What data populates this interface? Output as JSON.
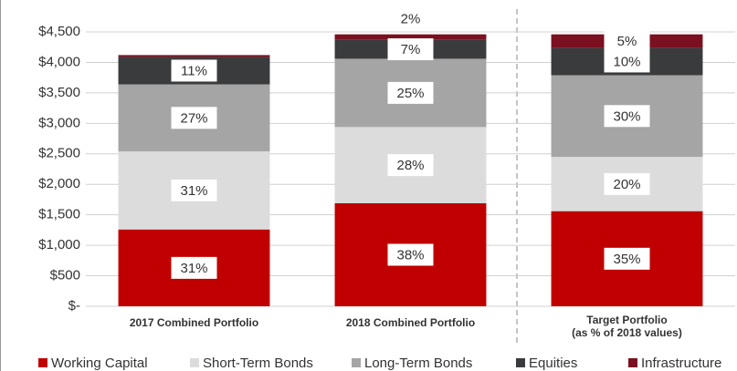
{
  "chart_data": {
    "type": "stacked_bar",
    "categories": [
      "2017 Combined Portfolio",
      "2018 Combined Portfolio",
      "Target Portfolio"
    ],
    "category_notes": [
      null,
      null,
      "(as % of 2018 values)"
    ],
    "series": [
      {
        "name": "Working Capital",
        "color": "#c00000",
        "values": [
          1260,
          1690,
          1560
        ],
        "percent_labels": [
          "31%",
          "38%",
          "35%"
        ]
      },
      {
        "name": "Short-Term Bonds",
        "color": "#dcdcdc",
        "values": [
          1280,
          1250,
          890
        ],
        "percent_labels": [
          "31%",
          "28%",
          "20%"
        ]
      },
      {
        "name": "Long-Term Bonds",
        "color": "#a5a5a5",
        "values": [
          1100,
          1120,
          1340
        ],
        "percent_labels": [
          "27%",
          "25%",
          "30%"
        ]
      },
      {
        "name": "Equities",
        "color": "#3a3b3d",
        "values": [
          450,
          310,
          450
        ],
        "percent_labels": [
          "11%",
          "7%",
          "10%"
        ]
      },
      {
        "name": "Infrastructure",
        "color": "#7b1020",
        "values": [
          30,
          90,
          220
        ],
        "percent_labels": [
          null,
          "2%",
          "5%"
        ]
      }
    ],
    "ylim": [
      0,
      4500
    ],
    "yticks": [
      {
        "value": 0,
        "label": "$-"
      },
      {
        "value": 500,
        "label": "$500"
      },
      {
        "value": 1000,
        "label": "$1,000"
      },
      {
        "value": 1500,
        "label": "$1,500"
      },
      {
        "value": 2000,
        "label": "$2,000"
      },
      {
        "value": 2500,
        "label": "$2,500"
      },
      {
        "value": 3000,
        "label": "$3,000"
      },
      {
        "value": 3500,
        "label": "$3,500"
      },
      {
        "value": 4000,
        "label": "$4,000"
      },
      {
        "value": 4500,
        "label": "$4,500"
      }
    ],
    "grid": true,
    "legend": "bottom"
  }
}
